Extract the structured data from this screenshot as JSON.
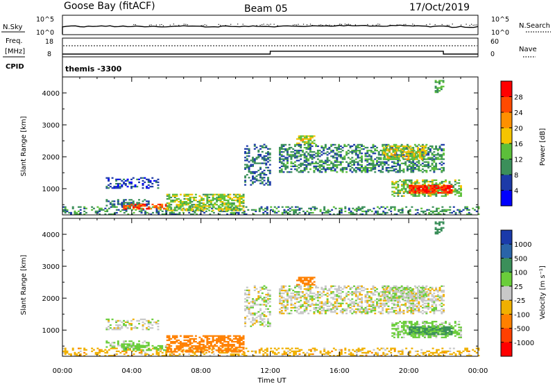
{
  "header": {
    "station": "Goose Bay (fitACF)",
    "beam": "Beam 05",
    "date": "17/Oct/2019"
  },
  "noise_panel": {
    "left_label": "N.Sky",
    "right_label": "N.Search",
    "left_ticks": [
      "10^5",
      "10^0"
    ],
    "right_ticks": [
      "10^5",
      "10^0"
    ]
  },
  "freq_panel": {
    "left_label_1": "Freq.",
    "left_label_2": "[MHz]",
    "right_label": "Nave",
    "left_ticks": [
      "18",
      "8"
    ],
    "right_ticks": [
      "60",
      "0"
    ]
  },
  "cpid_panel": {
    "label": "CPID",
    "value": "themis -3300"
  },
  "power_panel": {
    "ylabel": "Slant Range [km]",
    "yticks": [
      "1000",
      "2000",
      "3000",
      "4000"
    ],
    "colorbar_label": "Power [dB]",
    "colorbar_ticks": [
      "4",
      "8",
      "12",
      "16",
      "20",
      "24",
      "28"
    ],
    "colors": [
      "#0000ff",
      "#1c3aa8",
      "#3b8f5a",
      "#5cbf3a",
      "#f5c400",
      "#ff9000",
      "#ff4a00",
      "#ff0000"
    ]
  },
  "velocity_panel": {
    "ylabel": "Slant Range [km]",
    "yticks": [
      "1000",
      "2000",
      "3000",
      "4000"
    ],
    "colorbar_label": "Velocity [m s⁻¹]",
    "colorbar_ticks": [
      "1000",
      "500",
      "100",
      "25",
      "-25",
      "-100",
      "-500",
      "-1000"
    ],
    "colors": [
      "#1a3aaa",
      "#2a64a8",
      "#3b8f5a",
      "#6acd3a",
      "#c8c8c8",
      "#f0b000",
      "#ff8000",
      "#ff4000",
      "#ff0000"
    ]
  },
  "x_axis": {
    "label": "Time UT",
    "ticks": [
      "00:00",
      "04:00",
      "08:00",
      "12:00",
      "16:00",
      "20:00",
      "00:00"
    ]
  },
  "chart_data": {
    "type": "heatmap",
    "title": "Goose Bay (fitACF)",
    "xlabel": "Time UT",
    "ylabel": "Slant Range [km]",
    "xlim": [
      0,
      24
    ],
    "ylim": [
      180,
      4500
    ],
    "power_clim": [
      0,
      32
    ],
    "velocity_levels": [
      -1000,
      -500,
      -100,
      -25,
      25,
      100,
      500,
      1000
    ],
    "frequency_mhz": [
      {
        "t0": 0,
        "t1": 12,
        "value": 9.5
      },
      {
        "t0": 12,
        "t1": 22,
        "value": 11
      },
      {
        "t0": 22,
        "t1": 24,
        "value": 9.5
      }
    ],
    "regions": [
      {
        "t0": 0,
        "t1": 24,
        "r0": 180,
        "r1": 420,
        "power": 10,
        "velocity": -60,
        "density": 0.35
      },
      {
        "t0": 2.5,
        "t1": 5,
        "r0": 450,
        "r1": 650,
        "power": 8,
        "velocity": 50,
        "density": 0.45
      },
      {
        "t0": 3.5,
        "t1": 6,
        "r0": 350,
        "r1": 520,
        "power": 26,
        "velocity": 60,
        "density": 0.6
      },
      {
        "t0": 6,
        "t1": 10.5,
        "r0": 300,
        "r1": 820,
        "power": 15,
        "velocity": -160,
        "density": 0.65
      },
      {
        "t0": 2.5,
        "t1": 5.5,
        "r0": 1000,
        "r1": 1350,
        "power": 6,
        "velocity": 5,
        "density": 0.4
      },
      {
        "t0": 10.5,
        "t1": 12,
        "r0": 1100,
        "r1": 2400,
        "power": 8,
        "velocity": 5,
        "density": 0.35
      },
      {
        "t0": 13.5,
        "t1": 14.5,
        "r0": 2400,
        "r1": 2650,
        "power": 17,
        "velocity": -150,
        "density": 0.7
      },
      {
        "t0": 12.5,
        "t1": 22,
        "r0": 1500,
        "r1": 2400,
        "power": 10,
        "velocity": 0,
        "density": 0.5
      },
      {
        "t0": 18.5,
        "t1": 21,
        "r0": 1900,
        "r1": 2350,
        "power": 17,
        "velocity": 10,
        "density": 0.6
      },
      {
        "t0": 19,
        "t1": 23,
        "r0": 750,
        "r1": 1250,
        "power": 14,
        "velocity": 50,
        "density": 0.55
      },
      {
        "t0": 20,
        "t1": 22.5,
        "r0": 850,
        "r1": 1100,
        "power": 28,
        "velocity": 120,
        "density": 0.85
      },
      {
        "t0": 21.5,
        "t1": 22,
        "r0": 4000,
        "r1": 4400,
        "power": 12,
        "velocity": 150,
        "density": 0.5
      }
    ]
  }
}
